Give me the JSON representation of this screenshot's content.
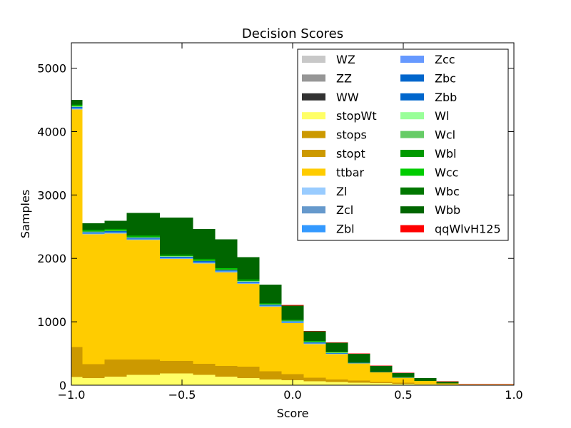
{
  "chart_data": {
    "type": "bar",
    "stacked": true,
    "histogram": true,
    "title": "Decision Scores",
    "xlabel": "Score",
    "ylabel": "Samples",
    "xlim": [
      -1.0,
      1.0
    ],
    "ylim": [
      0,
      5400
    ],
    "xticks": [
      -1.0,
      -0.5,
      0.0,
      0.5,
      1.0
    ],
    "xtick_labels": [
      "−1.0",
      "−0.5",
      "0.0",
      "0.5",
      "1.0"
    ],
    "yticks": [
      0,
      1000,
      2000,
      3000,
      4000,
      5000
    ],
    "ytick_labels": [
      "0",
      "1000",
      "2000",
      "3000",
      "4000",
      "5000"
    ],
    "grid": false,
    "legend_position": "top-right",
    "legend_columns": 2,
    "bin_edges": [
      -1.0,
      -0.95,
      -0.85,
      -0.75,
      -0.6,
      -0.45,
      -0.35,
      -0.25,
      -0.15,
      -0.05,
      0.05,
      0.15,
      0.25,
      0.35,
      0.45,
      0.55,
      0.65,
      0.75,
      1.0
    ],
    "series": [
      {
        "name": "WZ",
        "color": "#c8c8c8",
        "values": [
          0,
          0,
          0,
          0,
          0,
          0,
          0,
          0,
          0,
          0,
          0,
          0,
          0,
          0,
          0,
          0,
          0,
          0
        ]
      },
      {
        "name": "ZZ",
        "color": "#969696",
        "values": [
          0,
          0,
          0,
          0,
          0,
          0,
          0,
          0,
          0,
          0,
          0,
          0,
          0,
          0,
          0,
          0,
          0,
          0
        ]
      },
      {
        "name": "WW",
        "color": "#323232",
        "values": [
          0,
          0,
          3,
          5,
          5,
          5,
          3,
          3,
          2,
          2,
          1,
          1,
          1,
          1,
          0,
          0,
          0,
          0
        ]
      },
      {
        "name": "stopWt",
        "color": "#ffff66",
        "values": [
          130,
          110,
          130,
          160,
          180,
          160,
          130,
          110,
          90,
          75,
          60,
          50,
          40,
          30,
          22,
          15,
          10,
          5
        ]
      },
      {
        "name": "stops",
        "color": "#cc9900",
        "values": [
          450,
          200,
          250,
          220,
          180,
          150,
          150,
          160,
          110,
          85,
          40,
          30,
          20,
          15,
          10,
          5,
          3,
          1
        ]
      },
      {
        "name": "stopt",
        "color": "#cc9900",
        "values": [
          20,
          20,
          20,
          20,
          20,
          20,
          20,
          20,
          15,
          15,
          15,
          10,
          10,
          5,
          5,
          5,
          2,
          1
        ]
      },
      {
        "name": "ttbar",
        "color": "#ffcc00",
        "values": [
          3750,
          2050,
          1990,
          1885,
          1605,
          1585,
          1475,
          1305,
          1020,
          800,
          530,
          400,
          270,
          150,
          80,
          45,
          15,
          5
        ]
      },
      {
        "name": "Zl",
        "color": "#99ccff",
        "values": [
          5,
          5,
          5,
          5,
          5,
          5,
          5,
          5,
          5,
          5,
          5,
          3,
          2,
          1,
          1,
          0,
          0,
          0
        ]
      },
      {
        "name": "Zcl",
        "color": "#6699cc",
        "values": [
          5,
          5,
          5,
          5,
          5,
          5,
          5,
          5,
          5,
          5,
          5,
          3,
          2,
          1,
          1,
          0,
          0,
          0
        ]
      },
      {
        "name": "Zbl",
        "color": "#3399ff",
        "values": [
          10,
          5,
          5,
          5,
          5,
          5,
          5,
          5,
          5,
          5,
          5,
          3,
          2,
          1,
          1,
          0,
          0,
          0
        ]
      },
      {
        "name": "Zcc",
        "color": "#6699ff",
        "values": [
          5,
          5,
          5,
          5,
          5,
          5,
          5,
          5,
          5,
          5,
          5,
          3,
          2,
          1,
          1,
          0,
          0,
          0
        ]
      },
      {
        "name": "Zbc",
        "color": "#0066cc",
        "values": [
          5,
          5,
          5,
          5,
          5,
          5,
          5,
          5,
          5,
          5,
          5,
          3,
          2,
          1,
          1,
          0,
          0,
          0
        ]
      },
      {
        "name": "Zbb",
        "color": "#0066cc",
        "values": [
          10,
          10,
          10,
          10,
          10,
          10,
          10,
          10,
          5,
          5,
          5,
          3,
          2,
          1,
          1,
          0,
          0,
          0
        ]
      },
      {
        "name": "Wl",
        "color": "#99ff99",
        "values": [
          5,
          5,
          5,
          5,
          5,
          5,
          5,
          5,
          5,
          5,
          5,
          3,
          2,
          1,
          1,
          0,
          0,
          0
        ]
      },
      {
        "name": "Wcl",
        "color": "#66cc66",
        "values": [
          5,
          5,
          5,
          5,
          5,
          5,
          5,
          5,
          5,
          5,
          5,
          3,
          2,
          1,
          1,
          0,
          0,
          0
        ]
      },
      {
        "name": "Wbl",
        "color": "#009900",
        "values": [
          10,
          10,
          10,
          10,
          10,
          10,
          10,
          10,
          5,
          5,
          5,
          3,
          2,
          1,
          1,
          0,
          0,
          0
        ]
      },
      {
        "name": "Wcc",
        "color": "#00cc00",
        "values": [
          10,
          10,
          10,
          10,
          10,
          10,
          10,
          10,
          5,
          5,
          5,
          3,
          2,
          1,
          1,
          0,
          0,
          0
        ]
      },
      {
        "name": "Wbc",
        "color": "#007700",
        "values": [
          10,
          10,
          10,
          10,
          10,
          10,
          10,
          10,
          5,
          5,
          5,
          3,
          2,
          1,
          1,
          0,
          0,
          0
        ]
      },
      {
        "name": "Wbb",
        "color": "#006600",
        "values": [
          70,
          100,
          125,
          350,
          580,
          470,
          445,
          345,
          295,
          222,
          150,
          145,
          130,
          90,
          65,
          40,
          25,
          1
        ]
      },
      {
        "name": "qqWlvH125",
        "color": "#ff0000",
        "values": [
          0,
          0,
          0,
          0,
          0,
          0,
          0,
          0,
          0,
          10,
          5,
          5,
          5,
          5,
          5,
          5,
          5,
          5
        ]
      }
    ],
    "legend_order": [
      [
        "WZ",
        "ZZ",
        "WW",
        "stopWt",
        "stops",
        "stopt",
        "ttbar",
        "Zl",
        "Zcl",
        "Zbl"
      ],
      [
        "Zcc",
        "Zbc",
        "Zbb",
        "Wl",
        "Wcl",
        "Wbl",
        "Wcc",
        "Wbc",
        "Wbb",
        "qqWlvH125"
      ]
    ]
  }
}
